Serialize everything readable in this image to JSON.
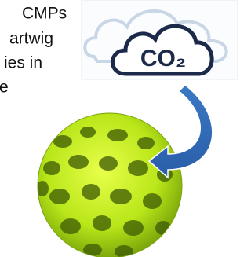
{
  "text_lines": [
    "CMPs",
    "artwig",
    "ies in",
    "e"
  ],
  "cloud_label": "CO₂"
}
